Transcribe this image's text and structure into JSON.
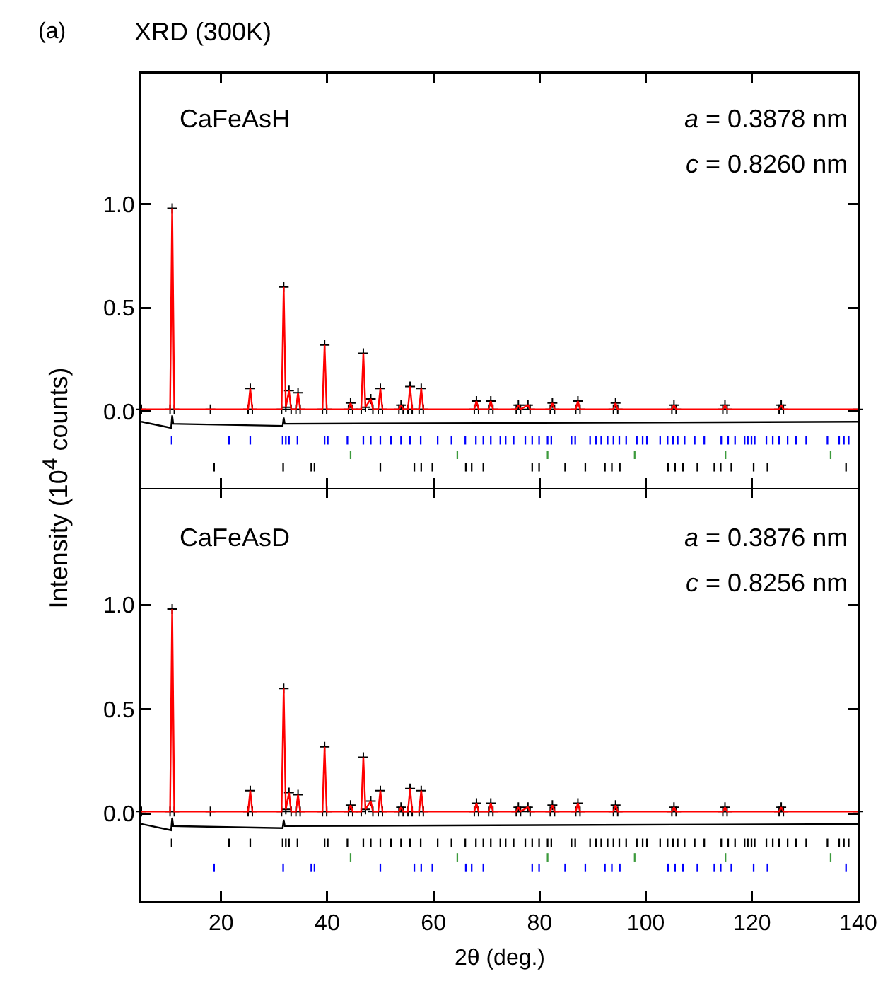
{
  "chart_data": [
    {
      "type": "scatter",
      "title": "XRD (300K)",
      "ylabel": "Intensity (10$^{4}$ counts)",
      "annotations": [
        "(a)",
        "CaFeAsH",
        "a = 0.3878 nm",
        "c = 0.8260 nm"
      ],
      "xlim": [
        5,
        140
      ],
      "xticks": [
        20,
        40,
        60,
        80,
        100,
        120,
        140
      ],
      "ylim": [
        -0.37,
        1.63
      ],
      "yticks": [
        {
          "value": 0,
          "label": "0.0"
        },
        {
          "value": 0.5,
          "label": "0.5"
        },
        {
          "value": 1,
          "label": "1.0"
        }
      ],
      "tick_labels": "y",
      "grid": false,
      "series": [
        {
          "marker": "cross",
          "color": "#000000",
          "x": [
            5,
            10.4,
            10.8,
            11.2,
            18,
            25.1,
            25.5,
            25.9,
            31.4,
            31.8,
            32.2,
            32.8,
            33.2,
            34.1,
            34.5,
            34.9,
            39.1,
            39.5,
            39.9,
            44.0,
            44.4,
            44.8,
            46.4,
            46.8,
            47.2,
            48.2,
            48.6,
            49.6,
            50,
            50.4,
            53.5,
            53.9,
            54.3,
            55.2,
            55.6,
            56,
            57.3,
            57.7,
            58.1,
            67.7,
            68.1,
            68.5,
            70.4,
            70.8,
            71.2,
            75.6,
            76,
            76.4,
            77.8,
            78.2,
            82,
            82.4,
            82.8,
            86.8,
            87.2,
            87.6,
            93.9,
            94.3,
            94.7,
            104.9,
            105.3,
            105.7,
            114.5,
            114.9,
            115.3,
            125.1,
            125.5,
            125.9,
            140
          ],
          "values": [
            0.01,
            0.01,
            0.98,
            0.01,
            0.01,
            0.01,
            0.11,
            0.01,
            0.01,
            0.6,
            0.02,
            0.1,
            0.01,
            0.01,
            0.09,
            0.01,
            0.01,
            0.32,
            0.01,
            0.01,
            0.04,
            0.01,
            0.01,
            0.28,
            0.02,
            0.06,
            0.01,
            0.01,
            0.11,
            0.01,
            0.01,
            0.03,
            0.01,
            0.01,
            0.12,
            0.01,
            0.01,
            0.11,
            0.01,
            0.01,
            0.05,
            0.01,
            0.01,
            0.05,
            0.01,
            0.01,
            0.03,
            0.01,
            0.03,
            0.01,
            0.01,
            0.04,
            0.01,
            0.01,
            0.05,
            0.01,
            0.01,
            0.04,
            0.01,
            0.01,
            0.03,
            0.01,
            0.01,
            0.03,
            0.01,
            0.01,
            0.03,
            0.01,
            0.01
          ]
        },
        {
          "type": "line",
          "marker": "none",
          "color": "#ff0000",
          "x": [
            5,
            10.4,
            10.8,
            11.2,
            18,
            25.1,
            25.5,
            25.9,
            31.4,
            31.8,
            32.2,
            32.8,
            33.2,
            34.1,
            34.5,
            34.9,
            39.1,
            39.5,
            39.9,
            44.0,
            44.4,
            44.8,
            46.4,
            46.8,
            47.2,
            48.2,
            48.6,
            49.6,
            50,
            50.4,
            53.5,
            53.9,
            54.3,
            55.2,
            55.6,
            56,
            57.3,
            57.7,
            58.1,
            67.7,
            68.1,
            68.5,
            70.4,
            70.8,
            71.2,
            75.6,
            76,
            76.4,
            77.8,
            78.2,
            82,
            82.4,
            82.8,
            86.8,
            87.2,
            87.6,
            93.9,
            94.3,
            94.7,
            104.9,
            105.3,
            105.7,
            114.5,
            114.9,
            115.3,
            125.1,
            125.5,
            125.9,
            140
          ],
          "values": [
            0.01,
            0.01,
            0.98,
            0.01,
            0.01,
            0.01,
            0.11,
            0.01,
            0.01,
            0.6,
            0.02,
            0.1,
            0.01,
            0.01,
            0.09,
            0.01,
            0.01,
            0.32,
            0.01,
            0.01,
            0.04,
            0.01,
            0.01,
            0.28,
            0.02,
            0.06,
            0.01,
            0.01,
            0.11,
            0.01,
            0.01,
            0.03,
            0.01,
            0.01,
            0.12,
            0.01,
            0.01,
            0.11,
            0.01,
            0.01,
            0.05,
            0.01,
            0.01,
            0.05,
            0.01,
            0.01,
            0.03,
            0.01,
            0.03,
            0.01,
            0.01,
            0.04,
            0.01,
            0.01,
            0.05,
            0.01,
            0.01,
            0.04,
            0.01,
            0.01,
            0.03,
            0.01,
            0.01,
            0.03,
            0.01,
            0.01,
            0.03,
            0.01,
            0.01
          ]
        },
        {
          "type": "line",
          "marker": "none",
          "color": "#000000",
          "x": [
            5,
            10.6,
            10.8,
            11,
            31.6,
            31.8,
            32,
            140
          ],
          "values": [
            -0.05,
            -0.08,
            -0.02,
            -0.06,
            -0.07,
            -0.03,
            -0.06,
            -0.05
          ]
        },
        {
          "type": "bar",
          "color": "#0000ff",
          "x": [
            10.7,
            21.5,
            25.5,
            31.6,
            32.2,
            32.8,
            34.4,
            39.5,
            40.1,
            43.8,
            46.8,
            48.2,
            50,
            52,
            53.9,
            55.6,
            57.6,
            60.8,
            63.4,
            66,
            68,
            69.4,
            70.8,
            72.6,
            73.6,
            75.1,
            77.3,
            78.6,
            79.9,
            81.5,
            82.2,
            86,
            86.7,
            89.5,
            90.6,
            91.6,
            92.8,
            93.9,
            95,
            96.3,
            98.3,
            99.4,
            100.2,
            102.7,
            104.1,
            105.1,
            106,
            107.3,
            109.2,
            111,
            114.2,
            115.5,
            116.8,
            118.6,
            119.2,
            119.9,
            120.5,
            122.7,
            123.9,
            125.1,
            126.7,
            128.3,
            130.2,
            134.2,
            136.4,
            137.3,
            138.2
          ],
          "values": [
            0.04,
            0.04,
            0.04,
            0.04,
            0.04,
            0.04,
            0.04,
            0.04,
            0.04,
            0.04,
            0.04,
            0.04,
            0.04,
            0.04,
            0.04,
            0.04,
            0.04,
            0.04,
            0.04,
            0.04,
            0.04,
            0.04,
            0.04,
            0.04,
            0.04,
            0.04,
            0.04,
            0.04,
            0.04,
            0.04,
            0.04,
            0.04,
            0.04,
            0.04,
            0.04,
            0.04,
            0.04,
            0.04,
            0.04,
            0.04,
            0.04,
            0.04,
            0.04,
            0.04,
            0.04,
            0.04,
            0.04,
            0.04,
            0.04,
            0.04,
            0.04,
            0.04,
            0.04,
            0.04,
            0.04,
            0.04,
            0.04,
            0.04,
            0.04,
            0.04,
            0.04,
            0.04,
            0.04,
            0.04,
            0.04,
            0.04,
            0.04
          ],
          "base": [
            -0.16,
            -0.16,
            -0.16,
            -0.16,
            -0.16,
            -0.16,
            -0.16,
            -0.16,
            -0.16,
            -0.16,
            -0.16,
            -0.16,
            -0.16,
            -0.16,
            -0.16,
            -0.16,
            -0.16,
            -0.16,
            -0.16,
            -0.16,
            -0.16,
            -0.16,
            -0.16,
            -0.16,
            -0.16,
            -0.16,
            -0.16,
            -0.16,
            -0.16,
            -0.16,
            -0.16,
            -0.16,
            -0.16,
            -0.16,
            -0.16,
            -0.16,
            -0.16,
            -0.16,
            -0.16,
            -0.16,
            -0.16,
            -0.16,
            -0.16,
            -0.16,
            -0.16,
            -0.16,
            -0.16,
            -0.16,
            -0.16,
            -0.16,
            -0.16,
            -0.16,
            -0.16,
            -0.16,
            -0.16,
            -0.16,
            -0.16,
            -0.16,
            -0.16,
            -0.16,
            -0.16,
            -0.16,
            -0.16,
            -0.16,
            -0.16,
            -0.16,
            -0.16
          ]
        },
        {
          "type": "bar",
          "color": "#3c9a3c",
          "x": [
            44.4,
            64.5,
            81.5,
            97.9,
            115,
            134.8
          ],
          "values": [
            0.04,
            0.04,
            0.04,
            0.04,
            0.04,
            0.04
          ],
          "base": [
            -0.23,
            -0.23,
            -0.23,
            -0.23,
            -0.23,
            -0.23
          ]
        },
        {
          "type": "bar",
          "color": "#000000",
          "x": [
            18.7,
            31.7,
            37,
            37.6,
            50,
            56.4,
            57.7,
            59.8,
            66.1,
            67.2,
            69.4,
            78.6,
            79.9,
            84.8,
            88.6,
            92.3,
            93.6,
            95.1,
            104.2,
            105.5,
            107,
            109.7,
            112.9,
            114.1,
            116.1,
            120.3,
            122.9,
            137.7
          ],
          "values": [
            0.04,
            0.04,
            0.04,
            0.04,
            0.04,
            0.04,
            0.04,
            0.04,
            0.04,
            0.04,
            0.04,
            0.04,
            0.04,
            0.04,
            0.04,
            0.04,
            0.04,
            0.04,
            0.04,
            0.04,
            0.04,
            0.04,
            0.04,
            0.04,
            0.04,
            0.04,
            0.04,
            0.04
          ],
          "base": [
            -0.29,
            -0.29,
            -0.29,
            -0.29,
            -0.29,
            -0.29,
            -0.29,
            -0.29,
            -0.29,
            -0.29,
            -0.29,
            -0.29,
            -0.29,
            -0.29,
            -0.29,
            -0.29,
            -0.29,
            -0.29,
            -0.29,
            -0.29,
            -0.29,
            -0.29,
            -0.29,
            -0.29,
            -0.29,
            -0.29,
            -0.29,
            -0.29
          ]
        }
      ]
    },
    {
      "type": "scatter",
      "xlabel": "2θ (deg.)",
      "annotations": [
        "CaFeAsD",
        "a = 0.3876 nm",
        "c = 0.8256 nm"
      ],
      "xlim": [
        5,
        140
      ],
      "xticks": [
        20,
        40,
        60,
        80,
        100,
        120,
        140
      ],
      "ylim": [
        -0.42,
        1.56
      ],
      "yticks": [
        {
          "value": 0,
          "label": "0.0"
        },
        {
          "value": 0.5,
          "label": "0.5"
        },
        {
          "value": 1,
          "label": "1.0"
        }
      ],
      "grid": false,
      "series": [
        {
          "marker": "cross",
          "color": "#000000",
          "x": [
            5,
            10.4,
            10.8,
            11.2,
            18,
            25.1,
            25.5,
            25.9,
            31.4,
            31.8,
            32.2,
            32.8,
            33.2,
            34.1,
            34.5,
            34.9,
            39.1,
            39.5,
            39.9,
            44.0,
            44.4,
            44.8,
            46.4,
            46.8,
            47.2,
            48.2,
            48.6,
            49.6,
            50,
            50.4,
            53.5,
            53.9,
            54.3,
            55.2,
            55.6,
            56,
            57.3,
            57.7,
            58.1,
            67.7,
            68.1,
            68.5,
            70.4,
            70.8,
            71.2,
            75.6,
            76,
            76.4,
            77.8,
            78.2,
            82,
            82.4,
            82.8,
            86.8,
            87.2,
            87.6,
            93.9,
            94.3,
            94.7,
            104.9,
            105.3,
            105.7,
            114.5,
            114.9,
            115.3,
            125.1,
            125.5,
            125.9,
            140
          ],
          "values": [
            0.01,
            0.01,
            0.98,
            0.01,
            0.01,
            0.01,
            0.11,
            0.01,
            0.01,
            0.6,
            0.02,
            0.1,
            0.01,
            0.01,
            0.09,
            0.01,
            0.01,
            0.32,
            0.01,
            0.01,
            0.04,
            0.01,
            0.01,
            0.27,
            0.02,
            0.06,
            0.01,
            0.01,
            0.11,
            0.01,
            0.01,
            0.03,
            0.01,
            0.01,
            0.12,
            0.01,
            0.01,
            0.11,
            0.01,
            0.01,
            0.05,
            0.01,
            0.01,
            0.05,
            0.01,
            0.01,
            0.03,
            0.01,
            0.03,
            0.01,
            0.01,
            0.04,
            0.01,
            0.01,
            0.05,
            0.01,
            0.01,
            0.04,
            0.01,
            0.01,
            0.03,
            0.01,
            0.01,
            0.03,
            0.01,
            0.01,
            0.03,
            0.01,
            0.01
          ]
        },
        {
          "type": "line",
          "marker": "none",
          "color": "#ff0000",
          "x": [
            5,
            10.4,
            10.8,
            11.2,
            18,
            25.1,
            25.5,
            25.9,
            31.4,
            31.8,
            32.2,
            32.8,
            33.2,
            34.1,
            34.5,
            34.9,
            39.1,
            39.5,
            39.9,
            44.0,
            44.4,
            44.8,
            46.4,
            46.8,
            47.2,
            48.2,
            48.6,
            49.6,
            50,
            50.4,
            53.5,
            53.9,
            54.3,
            55.2,
            55.6,
            56,
            57.3,
            57.7,
            58.1,
            67.7,
            68.1,
            68.5,
            70.4,
            70.8,
            71.2,
            75.6,
            76,
            76.4,
            77.8,
            78.2,
            82,
            82.4,
            82.8,
            86.8,
            87.2,
            87.6,
            93.9,
            94.3,
            94.7,
            104.9,
            105.3,
            105.7,
            114.5,
            114.9,
            115.3,
            125.1,
            125.5,
            125.9,
            140
          ],
          "values": [
            0.01,
            0.01,
            0.98,
            0.01,
            0.01,
            0.01,
            0.11,
            0.01,
            0.01,
            0.6,
            0.02,
            0.1,
            0.01,
            0.01,
            0.09,
            0.01,
            0.01,
            0.32,
            0.01,
            0.01,
            0.04,
            0.01,
            0.01,
            0.27,
            0.02,
            0.06,
            0.01,
            0.01,
            0.11,
            0.01,
            0.01,
            0.03,
            0.01,
            0.01,
            0.12,
            0.01,
            0.01,
            0.11,
            0.01,
            0.01,
            0.05,
            0.01,
            0.01,
            0.05,
            0.01,
            0.01,
            0.03,
            0.01,
            0.03,
            0.01,
            0.01,
            0.04,
            0.01,
            0.01,
            0.05,
            0.01,
            0.01,
            0.04,
            0.01,
            0.01,
            0.03,
            0.01,
            0.01,
            0.03,
            0.01,
            0.01,
            0.03,
            0.01,
            0.01
          ]
        },
        {
          "type": "line",
          "marker": "none",
          "color": "#000000",
          "x": [
            5,
            10.6,
            10.8,
            11,
            31.6,
            31.8,
            32,
            140
          ],
          "values": [
            -0.05,
            -0.08,
            -0.02,
            -0.06,
            -0.07,
            -0.03,
            -0.06,
            -0.05
          ]
        },
        {
          "type": "bar",
          "color": "#000000",
          "x": [
            10.7,
            21.5,
            25.5,
            31.6,
            32.2,
            32.8,
            34.4,
            39.5,
            40.1,
            43.8,
            46.8,
            48.2,
            50,
            52,
            53.9,
            55.6,
            57.6,
            60.8,
            63.4,
            66,
            68,
            69.4,
            70.8,
            72.6,
            73.6,
            75.1,
            77.3,
            78.6,
            79.9,
            81.5,
            82.2,
            86,
            86.7,
            89.5,
            90.6,
            91.6,
            92.8,
            93.9,
            95,
            96.3,
            98.3,
            99.4,
            100.2,
            102.7,
            104.1,
            105.1,
            106,
            107.3,
            109.2,
            111,
            114.2,
            115.5,
            116.8,
            118.6,
            119.2,
            119.9,
            120.5,
            122.7,
            123.9,
            125.1,
            126.7,
            128.3,
            130.2,
            134.2,
            136.4,
            137.3,
            138.2
          ],
          "values": [
            0.04,
            0.04,
            0.04,
            0.04,
            0.04,
            0.04,
            0.04,
            0.04,
            0.04,
            0.04,
            0.04,
            0.04,
            0.04,
            0.04,
            0.04,
            0.04,
            0.04,
            0.04,
            0.04,
            0.04,
            0.04,
            0.04,
            0.04,
            0.04,
            0.04,
            0.04,
            0.04,
            0.04,
            0.04,
            0.04,
            0.04,
            0.04,
            0.04,
            0.04,
            0.04,
            0.04,
            0.04,
            0.04,
            0.04,
            0.04,
            0.04,
            0.04,
            0.04,
            0.04,
            0.04,
            0.04,
            0.04,
            0.04,
            0.04,
            0.04,
            0.04,
            0.04,
            0.04,
            0.04,
            0.04,
            0.04,
            0.04,
            0.04,
            0.04,
            0.04,
            0.04,
            0.04,
            0.04,
            0.04,
            0.04,
            0.04,
            0.04
          ],
          "base": [
            -0.16,
            -0.16,
            -0.16,
            -0.16,
            -0.16,
            -0.16,
            -0.16,
            -0.16,
            -0.16,
            -0.16,
            -0.16,
            -0.16,
            -0.16,
            -0.16,
            -0.16,
            -0.16,
            -0.16,
            -0.16,
            -0.16,
            -0.16,
            -0.16,
            -0.16,
            -0.16,
            -0.16,
            -0.16,
            -0.16,
            -0.16,
            -0.16,
            -0.16,
            -0.16,
            -0.16,
            -0.16,
            -0.16,
            -0.16,
            -0.16,
            -0.16,
            -0.16,
            -0.16,
            -0.16,
            -0.16,
            -0.16,
            -0.16,
            -0.16,
            -0.16,
            -0.16,
            -0.16,
            -0.16,
            -0.16,
            -0.16,
            -0.16,
            -0.16,
            -0.16,
            -0.16,
            -0.16,
            -0.16,
            -0.16,
            -0.16,
            -0.16,
            -0.16,
            -0.16,
            -0.16,
            -0.16,
            -0.16,
            -0.16,
            -0.16,
            -0.16,
            -0.16
          ]
        },
        {
          "type": "bar",
          "color": "#3c9a3c",
          "x": [
            44.4,
            64.5,
            81.5,
            97.9,
            115,
            134.8
          ],
          "values": [
            0.04,
            0.04,
            0.04,
            0.04,
            0.04,
            0.04
          ],
          "base": [
            -0.23,
            -0.23,
            -0.23,
            -0.23,
            -0.23,
            -0.23
          ]
        },
        {
          "type": "bar",
          "color": "#0000ff",
          "x": [
            18.7,
            31.7,
            37,
            37.6,
            50,
            56.4,
            57.7,
            59.8,
            66.1,
            67.2,
            69.4,
            78.6,
            79.9,
            84.8,
            88.6,
            92.3,
            93.6,
            95.1,
            104.2,
            105.5,
            107,
            109.7,
            112.9,
            114.1,
            116.1,
            120.3,
            122.9,
            137.7
          ],
          "values": [
            0.04,
            0.04,
            0.04,
            0.04,
            0.04,
            0.04,
            0.04,
            0.04,
            0.04,
            0.04,
            0.04,
            0.04,
            0.04,
            0.04,
            0.04,
            0.04,
            0.04,
            0.04,
            0.04,
            0.04,
            0.04,
            0.04,
            0.04,
            0.04,
            0.04,
            0.04,
            0.04,
            0.04
          ],
          "base": [
            -0.28,
            -0.28,
            -0.28,
            -0.28,
            -0.28,
            -0.28,
            -0.28,
            -0.28,
            -0.28,
            -0.28,
            -0.28,
            -0.28,
            -0.28,
            -0.28,
            -0.28,
            -0.28,
            -0.28,
            -0.28,
            -0.28,
            -0.28,
            -0.28,
            -0.28,
            -0.28,
            -0.28,
            -0.28,
            -0.28,
            -0.28,
            -0.28
          ]
        }
      ]
    }
  ]
}
